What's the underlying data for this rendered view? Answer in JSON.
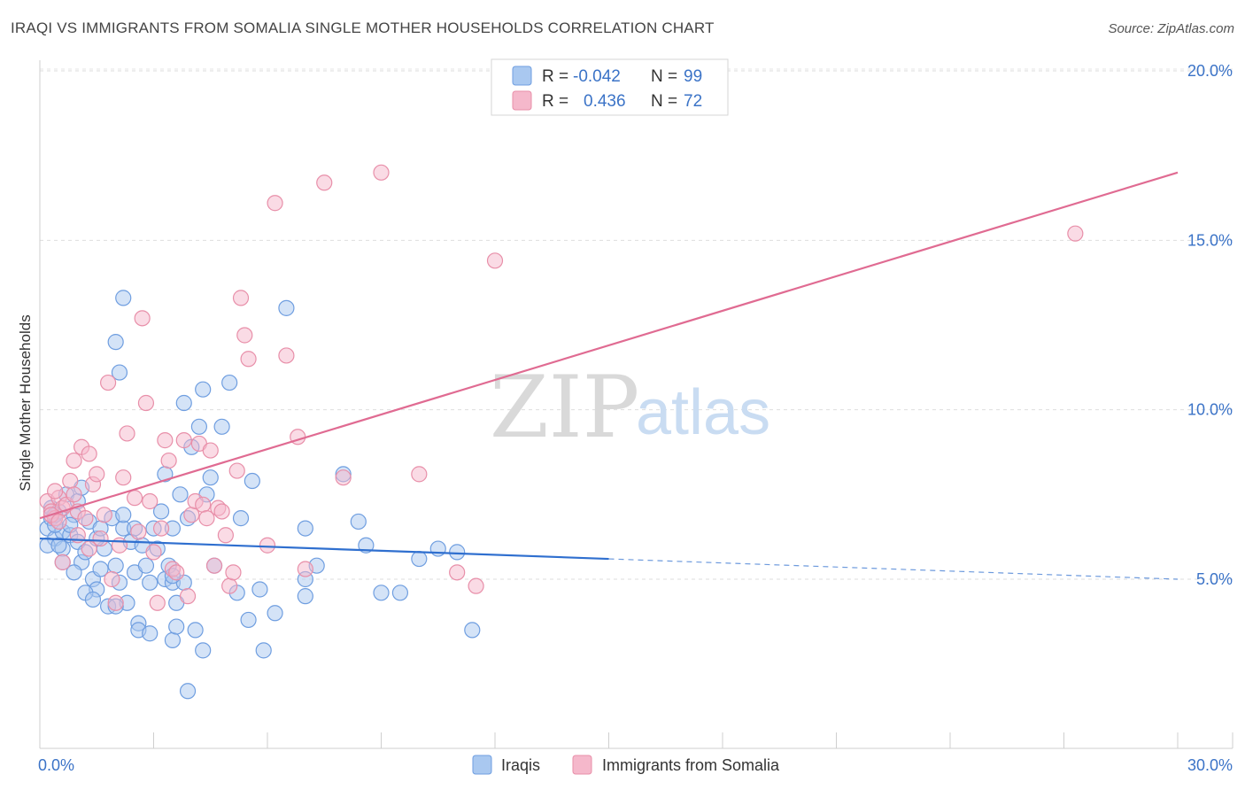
{
  "header": {
    "title": "IRAQI VS IMMIGRANTS FROM SOMALIA SINGLE MOTHER HOUSEHOLDS CORRELATION CHART",
    "source": "Source: ZipAtlas.com"
  },
  "watermark": {
    "zip": "ZIP",
    "atlas": "atlas"
  },
  "legend": {
    "rows": [
      {
        "r_label": "R =",
        "r_value": "-0.042",
        "n_label": "N =",
        "n_value": "99",
        "color": "#a9c8f0"
      },
      {
        "r_label": "R =",
        "r_value": "0.436",
        "n_label": "N =",
        "n_value": "72",
        "color": "#f5b8cb"
      }
    ]
  },
  "chart_data": {
    "type": "scatter",
    "title": "IRAQI VS IMMIGRANTS FROM SOMALIA SINGLE MOTHER HOUSEHOLDS CORRELATION CHART",
    "xlabel": "",
    "ylabel": "Single Mother Households",
    "xlim": [
      0,
      30
    ],
    "ylim": [
      0,
      21
    ],
    "x_tick_labels": [
      "0.0%",
      "30.0%"
    ],
    "y_ticks": [
      5,
      10,
      15,
      20
    ],
    "y_tick_labels": [
      "5.0%",
      "10.0%",
      "15.0%",
      "20.0%"
    ],
    "grid": true,
    "legend_position": "bottom",
    "series": [
      {
        "name": "Iraqis",
        "color": "#a9c8f0",
        "stroke": "#6f9ee0",
        "line_color": "#2f6fcf",
        "trend": {
          "x0": 0,
          "y0": 6.2,
          "x1": 15.0,
          "y1": 5.6,
          "dash_to_x": 30,
          "dash_to_y": 5.0
        },
        "points": [
          [
            0.2,
            6.5
          ],
          [
            0.3,
            6.8
          ],
          [
            0.4,
            6.2
          ],
          [
            0.5,
            7.0
          ],
          [
            0.6,
            6.4
          ],
          [
            0.3,
            7.1
          ],
          [
            0.2,
            6.0
          ],
          [
            0.4,
            6.6
          ],
          [
            0.6,
            5.9
          ],
          [
            0.8,
            6.3
          ],
          [
            0.7,
            7.5
          ],
          [
            0.9,
            6.9
          ],
          [
            1.0,
            6.1
          ],
          [
            1.1,
            5.5
          ],
          [
            0.9,
            5.2
          ],
          [
            1.2,
            5.8
          ],
          [
            1.3,
            6.7
          ],
          [
            1.0,
            7.3
          ],
          [
            0.5,
            6.0
          ],
          [
            0.4,
            6.9
          ],
          [
            1.4,
            5.0
          ],
          [
            1.5,
            4.7
          ],
          [
            1.6,
            5.3
          ],
          [
            1.8,
            4.2
          ],
          [
            1.7,
            5.9
          ],
          [
            1.9,
            6.8
          ],
          [
            2.0,
            5.4
          ],
          [
            2.1,
            4.9
          ],
          [
            2.2,
            6.5
          ],
          [
            1.5,
            6.2
          ],
          [
            1.2,
            4.6
          ],
          [
            1.4,
            4.4
          ],
          [
            2.3,
            4.3
          ],
          [
            2.0,
            4.2
          ],
          [
            2.5,
            5.2
          ],
          [
            2.6,
            3.7
          ],
          [
            2.8,
            5.4
          ],
          [
            2.9,
            4.9
          ],
          [
            3.0,
            6.5
          ],
          [
            2.4,
            6.1
          ],
          [
            2.6,
            3.5
          ],
          [
            3.2,
            7.0
          ],
          [
            3.3,
            8.1
          ],
          [
            2.2,
            6.9
          ],
          [
            3.1,
            5.9
          ],
          [
            2.5,
            6.5
          ],
          [
            2.7,
            6.0
          ],
          [
            3.3,
            5.0
          ],
          [
            3.4,
            5.4
          ],
          [
            3.5,
            4.9
          ],
          [
            3.6,
            4.3
          ],
          [
            3.8,
            4.9
          ],
          [
            3.5,
            5.1
          ],
          [
            3.7,
            7.5
          ],
          [
            3.9,
            6.8
          ],
          [
            4.0,
            8.9
          ],
          [
            3.8,
            10.2
          ],
          [
            2.9,
            3.4
          ],
          [
            3.5,
            3.2
          ],
          [
            3.6,
            3.6
          ],
          [
            2.0,
            12.0
          ],
          [
            2.1,
            11.1
          ],
          [
            2.2,
            13.3
          ],
          [
            3.5,
            6.5
          ],
          [
            4.2,
            9.5
          ],
          [
            4.3,
            10.6
          ],
          [
            4.4,
            7.5
          ],
          [
            4.5,
            8.0
          ],
          [
            4.6,
            5.4
          ],
          [
            4.1,
            3.5
          ],
          [
            4.3,
            2.9
          ],
          [
            3.9,
            1.7
          ],
          [
            4.8,
            9.5
          ],
          [
            5.0,
            10.8
          ],
          [
            5.2,
            4.6
          ],
          [
            5.3,
            6.8
          ],
          [
            5.5,
            3.8
          ],
          [
            5.6,
            7.9
          ],
          [
            5.8,
            4.7
          ],
          [
            5.9,
            2.9
          ],
          [
            6.2,
            4.0
          ],
          [
            6.5,
            13.0
          ],
          [
            7.0,
            5.0
          ],
          [
            7.3,
            5.4
          ],
          [
            7.0,
            6.5
          ],
          [
            7.0,
            4.5
          ],
          [
            8.0,
            8.1
          ],
          [
            8.4,
            6.7
          ],
          [
            8.6,
            6.0
          ],
          [
            9.0,
            4.6
          ],
          [
            9.5,
            4.6
          ],
          [
            10.0,
            5.6
          ],
          [
            10.5,
            5.9
          ],
          [
            11.0,
            5.8
          ],
          [
            11.4,
            3.5
          ],
          [
            0.6,
            5.5
          ],
          [
            0.8,
            6.6
          ],
          [
            1.1,
            7.7
          ],
          [
            1.6,
            6.5
          ]
        ]
      },
      {
        "name": "Immigrants from Somalia",
        "color": "#f5b8cb",
        "stroke": "#e88fa9",
        "line_color": "#e06b92",
        "trend": {
          "x0": 0,
          "y0": 6.8,
          "x1": 30,
          "y1": 17.0
        },
        "points": [
          [
            0.2,
            7.3
          ],
          [
            0.3,
            7.0
          ],
          [
            0.4,
            6.8
          ],
          [
            0.5,
            7.4
          ],
          [
            0.6,
            7.1
          ],
          [
            0.4,
            7.6
          ],
          [
            0.3,
            6.9
          ],
          [
            0.7,
            7.2
          ],
          [
            0.5,
            6.7
          ],
          [
            0.8,
            7.9
          ],
          [
            0.9,
            8.5
          ],
          [
            1.0,
            7.0
          ],
          [
            1.1,
            8.9
          ],
          [
            1.2,
            6.8
          ],
          [
            1.3,
            8.7
          ],
          [
            1.4,
            7.8
          ],
          [
            1.5,
            8.1
          ],
          [
            1.3,
            5.9
          ],
          [
            1.6,
            6.2
          ],
          [
            1.7,
            6.9
          ],
          [
            1.8,
            10.8
          ],
          [
            1.9,
            5.0
          ],
          [
            2.0,
            4.3
          ],
          [
            2.1,
            6.0
          ],
          [
            2.2,
            8.0
          ],
          [
            2.3,
            9.3
          ],
          [
            2.5,
            7.4
          ],
          [
            2.6,
            6.4
          ],
          [
            2.7,
            12.7
          ],
          [
            2.8,
            10.2
          ],
          [
            2.9,
            7.3
          ],
          [
            3.0,
            5.8
          ],
          [
            3.1,
            4.3
          ],
          [
            3.2,
            6.5
          ],
          [
            3.3,
            9.1
          ],
          [
            3.4,
            8.5
          ],
          [
            3.5,
            5.3
          ],
          [
            3.6,
            5.2
          ],
          [
            3.8,
            9.1
          ],
          [
            3.9,
            4.5
          ],
          [
            4.0,
            6.9
          ],
          [
            4.1,
            7.3
          ],
          [
            4.2,
            9.0
          ],
          [
            4.3,
            7.2
          ],
          [
            4.4,
            6.8
          ],
          [
            4.5,
            8.8
          ],
          [
            4.6,
            5.4
          ],
          [
            4.7,
            7.1
          ],
          [
            4.8,
            7.0
          ],
          [
            4.9,
            6.3
          ],
          [
            5.0,
            4.8
          ],
          [
            5.1,
            5.2
          ],
          [
            5.2,
            8.2
          ],
          [
            5.3,
            13.3
          ],
          [
            5.4,
            12.2
          ],
          [
            5.5,
            11.5
          ],
          [
            6.0,
            6.0
          ],
          [
            6.2,
            16.1
          ],
          [
            6.5,
            11.6
          ],
          [
            6.8,
            9.2
          ],
          [
            7.0,
            5.3
          ],
          [
            7.5,
            16.7
          ],
          [
            8.0,
            8.0
          ],
          [
            9.0,
            17.0
          ],
          [
            10.0,
            8.1
          ],
          [
            11.0,
            5.2
          ],
          [
            11.5,
            4.8
          ],
          [
            12.0,
            14.4
          ],
          [
            27.3,
            15.2
          ],
          [
            0.6,
            5.5
          ],
          [
            1.0,
            6.3
          ],
          [
            0.9,
            7.5
          ]
        ]
      }
    ]
  }
}
